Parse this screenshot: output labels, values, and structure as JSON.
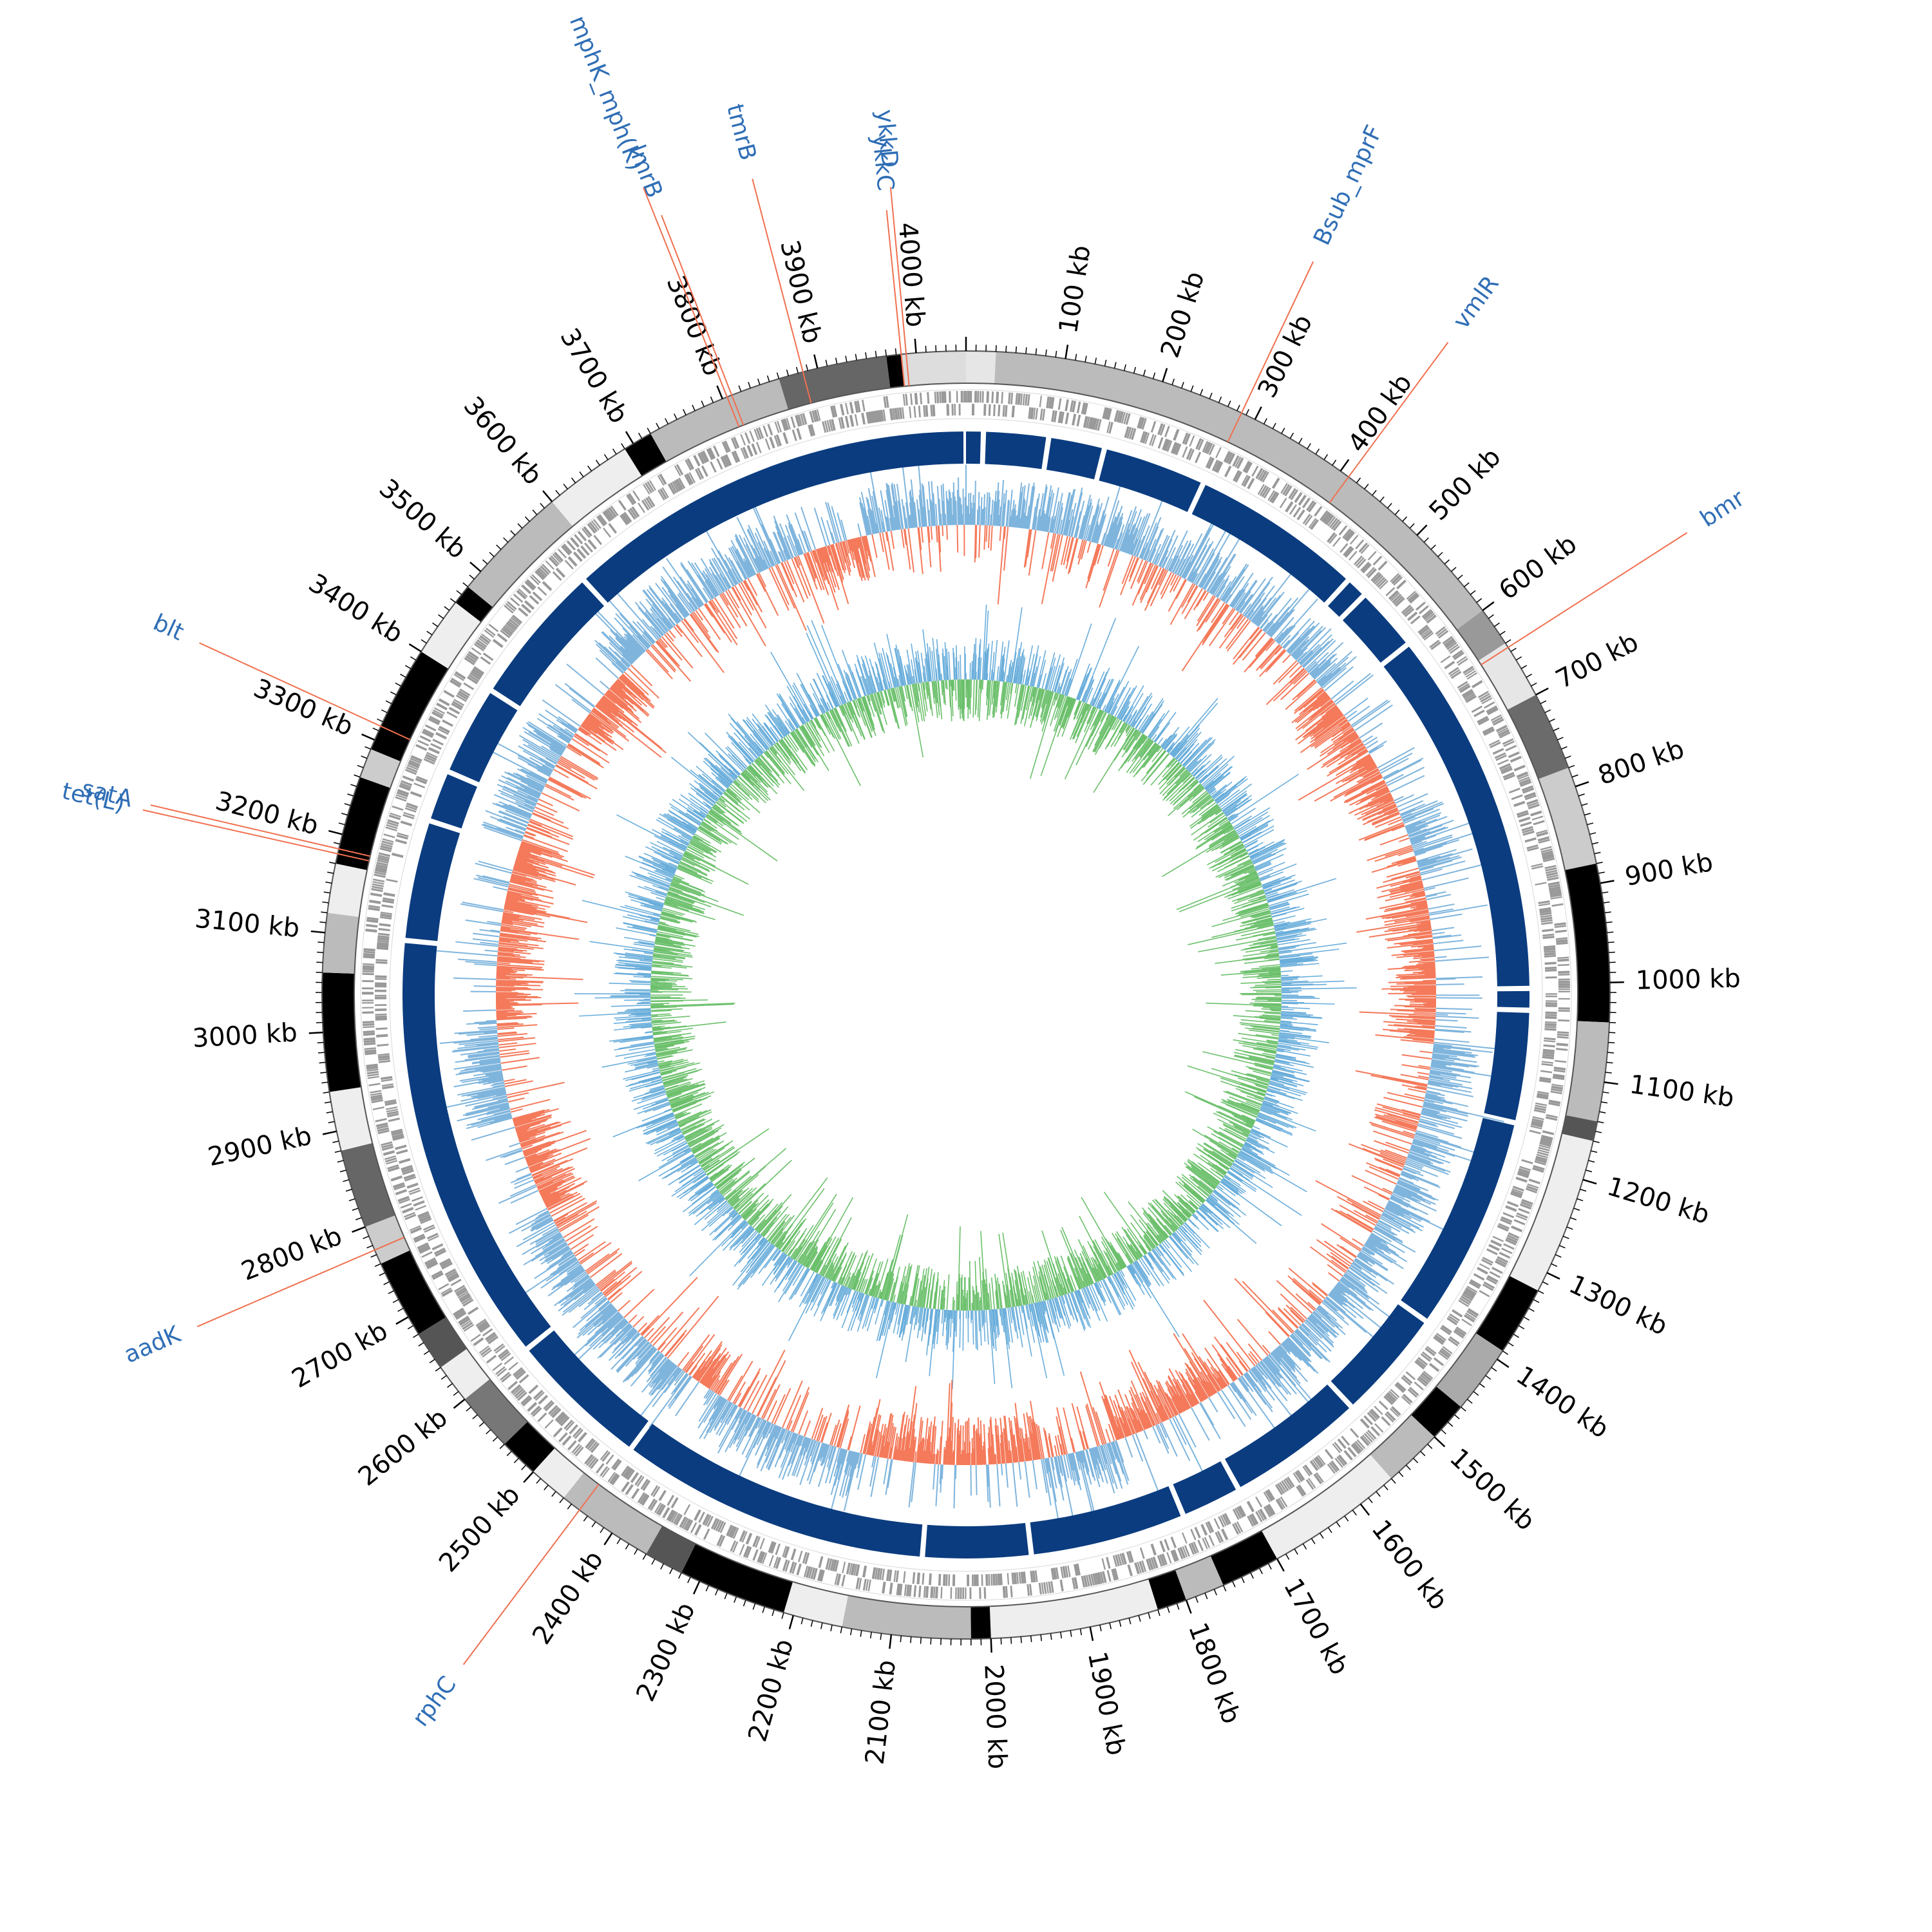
{
  "genome": {
    "length_kb": 4050,
    "tick_unit": "kb",
    "tick_labels": [
      "100 kb",
      "200 kb",
      "300 kb",
      "400 kb",
      "500 kb",
      "600 kb",
      "700 kb",
      "800 kb",
      "900 kb",
      "1000 kb",
      "1100 kb",
      "1200 kb",
      "1300 kb",
      "1400 kb",
      "1500 kb",
      "1600 kb",
      "1700 kb",
      "1800 kb",
      "1900 kb",
      "2000 kb",
      "2100 kb",
      "2200 kb",
      "2300 kb",
      "2400 kb",
      "2500 kb",
      "2600 kb",
      "2700 kb",
      "2800 kb",
      "2900 kb",
      "3000 kb",
      "3100 kb",
      "3200 kb",
      "3300 kb",
      "3400 kb",
      "3500 kb",
      "3600 kb",
      "3700 kb",
      "3800 kb",
      "3900 kb",
      "4000 kb"
    ],
    "tick_positions_kb": [
      100,
      200,
      300,
      400,
      500,
      600,
      700,
      800,
      900,
      1000,
      1100,
      1200,
      1300,
      1400,
      1500,
      1600,
      1700,
      1800,
      1900,
      2000,
      2100,
      2200,
      2300,
      2400,
      2500,
      2600,
      2700,
      2800,
      2900,
      3000,
      3100,
      3200,
      3300,
      3400,
      3500,
      3600,
      3700,
      3800,
      3900,
      4000
    ]
  },
  "gene_annotations": [
    {
      "name": "ykkD",
      "position_kb": 3990
    },
    {
      "name": "ykkC",
      "position_kb": 3985
    },
    {
      "name": "Bsub_mprF",
      "position_kb": 285
    },
    {
      "name": "vmlR",
      "position_kb": 410
    },
    {
      "name": "bmr",
      "position_kb": 645
    },
    {
      "name": "tmrB",
      "position_kb": 3885
    },
    {
      "name": "lmrB",
      "position_kb": 3810
    },
    {
      "name": "mphK_mph(K)",
      "position_kb": 3805
    },
    {
      "name": "blt",
      "position_kb": 3315
    },
    {
      "name": "satA",
      "position_kb": 3185
    },
    {
      "name": "tet(L)",
      "position_kb": 3180
    },
    {
      "name": "aadK",
      "position_kb": 2775
    },
    {
      "name": "rphC",
      "position_kb": 2440
    }
  ],
  "contig_blocks": [
    {
      "start": 0,
      "end": 30,
      "shade": "#e6e6e6"
    },
    {
      "start": 30,
      "end": 600,
      "shade": "#bbbbbb"
    },
    {
      "start": 600,
      "end": 640,
      "shade": "#999999"
    },
    {
      "start": 640,
      "end": 700,
      "shade": "#e6e6e6"
    },
    {
      "start": 700,
      "end": 780,
      "shade": "#6b6b6b"
    },
    {
      "start": 780,
      "end": 880,
      "shade": "#cccccc"
    },
    {
      "start": 880,
      "end": 1040,
      "shade": "#000000"
    },
    {
      "start": 1040,
      "end": 1140,
      "shade": "#bbbbbb"
    },
    {
      "start": 1140,
      "end": 1160,
      "shade": "#555555"
    },
    {
      "start": 1160,
      "end": 1320,
      "shade": "#eeeeee"
    },
    {
      "start": 1320,
      "end": 1390,
      "shade": "#000000"
    },
    {
      "start": 1390,
      "end": 1460,
      "shade": "#aaaaaa"
    },
    {
      "start": 1460,
      "end": 1500,
      "shade": "#000000"
    },
    {
      "start": 1500,
      "end": 1560,
      "shade": "#bbbbbb"
    },
    {
      "start": 1560,
      "end": 1700,
      "shade": "#eeeeee"
    },
    {
      "start": 1700,
      "end": 1760,
      "shade": "#000000"
    },
    {
      "start": 1760,
      "end": 1800,
      "shade": "#bbbbbb"
    },
    {
      "start": 1800,
      "end": 1830,
      "shade": "#000000"
    },
    {
      "start": 1830,
      "end": 2000,
      "shade": "#eeeeee"
    },
    {
      "start": 2000,
      "end": 2020,
      "shade": "#000000"
    },
    {
      "start": 2020,
      "end": 2150,
      "shade": "#bbbbbb"
    },
    {
      "start": 2150,
      "end": 2210,
      "shade": "#eeeeee"
    },
    {
      "start": 2210,
      "end": 2320,
      "shade": "#000000"
    },
    {
      "start": 2320,
      "end": 2360,
      "shade": "#555555"
    },
    {
      "start": 2360,
      "end": 2460,
      "shade": "#bbbbbb"
    },
    {
      "start": 2460,
      "end": 2500,
      "shade": "#eeeeee"
    },
    {
      "start": 2500,
      "end": 2540,
      "shade": "#000000"
    },
    {
      "start": 2540,
      "end": 2600,
      "shade": "#777777"
    },
    {
      "start": 2600,
      "end": 2640,
      "shade": "#eeeeee"
    },
    {
      "start": 2640,
      "end": 2680,
      "shade": "#555555"
    },
    {
      "start": 2680,
      "end": 2760,
      "shade": "#000000"
    },
    {
      "start": 2760,
      "end": 2800,
      "shade": "#cccccc"
    },
    {
      "start": 2800,
      "end": 2880,
      "shade": "#666666"
    },
    {
      "start": 2880,
      "end": 2940,
      "shade": "#eeeeee"
    },
    {
      "start": 2940,
      "end": 3060,
      "shade": "#000000"
    },
    {
      "start": 3060,
      "end": 3120,
      "shade": "#bbbbbb"
    },
    {
      "start": 3120,
      "end": 3170,
      "shade": "#eeeeee"
    },
    {
      "start": 3170,
      "end": 3260,
      "shade": "#000000"
    },
    {
      "start": 3260,
      "end": 3290,
      "shade": "#cccccc"
    },
    {
      "start": 3290,
      "end": 3400,
      "shade": "#000000"
    },
    {
      "start": 3400,
      "end": 3460,
      "shade": "#eeeeee"
    },
    {
      "start": 3460,
      "end": 3480,
      "shade": "#000000"
    },
    {
      "start": 3480,
      "end": 3600,
      "shade": "#bbbbbb"
    },
    {
      "start": 3600,
      "end": 3690,
      "shade": "#eeeeee"
    },
    {
      "start": 3690,
      "end": 3720,
      "shade": "#000000"
    },
    {
      "start": 3720,
      "end": 3860,
      "shade": "#bbbbbb"
    },
    {
      "start": 3860,
      "end": 3970,
      "shade": "#666666"
    },
    {
      "start": 3970,
      "end": 3985,
      "shade": "#000000"
    },
    {
      "start": 3985,
      "end": 4050,
      "shade": "#dddddd"
    }
  ],
  "colors": {
    "backbone": "#0b3c7f",
    "gc_content_above": "#7fb5dd",
    "gc_content_below": "#f47a5b",
    "gc_skew_positive": "#6cc06c",
    "gc_skew_negative": "#6aaedb",
    "gene_label": "#2f6eb5",
    "annotation_line": "#f07050",
    "cds_track": "#999999",
    "ring_outline": "#555555"
  }
}
